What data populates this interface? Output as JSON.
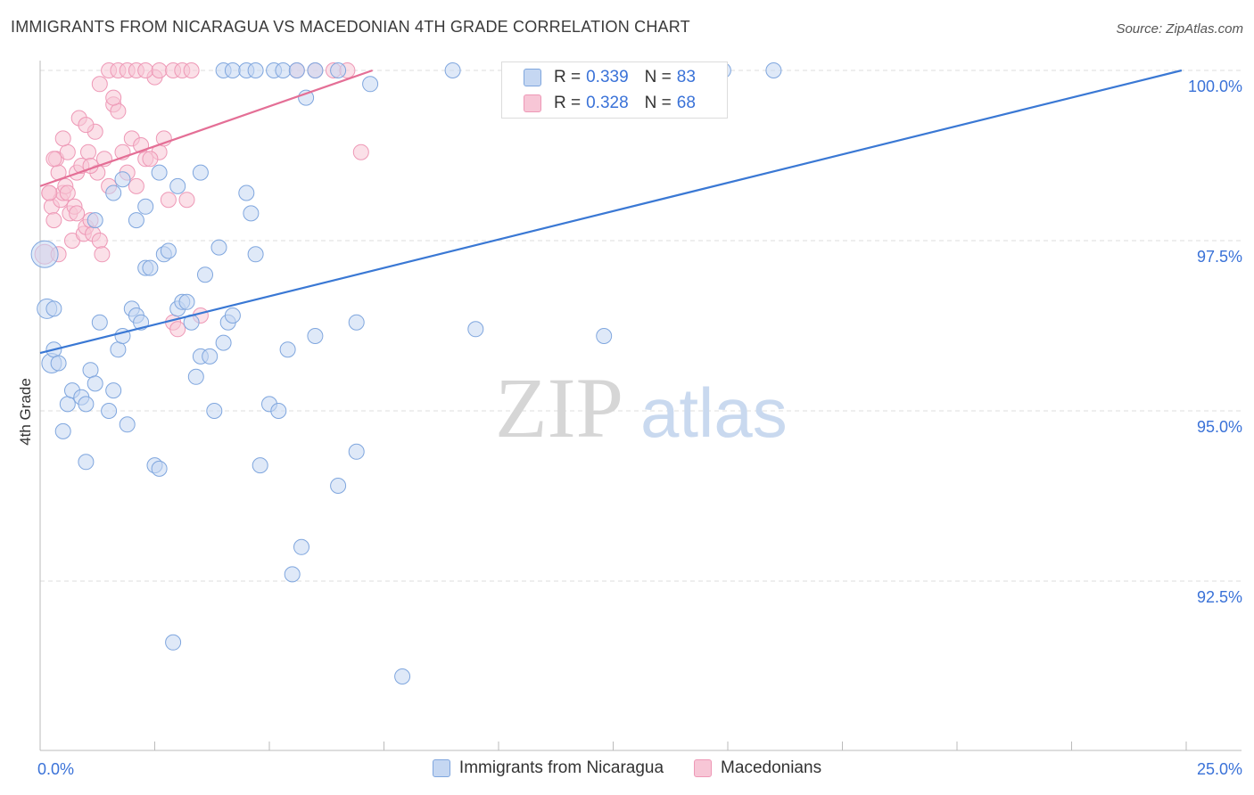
{
  "title": "IMMIGRANTS FROM NICARAGUA VS MACEDONIAN 4TH GRADE CORRELATION CHART",
  "source": "Source: ZipAtlas.com",
  "watermark": {
    "zip": "ZIP",
    "atlas": "atlas"
  },
  "colors": {
    "blue_fill": "#c5d7f2",
    "blue_stroke": "#7fa6de",
    "blue_line": "#3a78d4",
    "pink_fill": "#f7c6d6",
    "pink_stroke": "#ee98b6",
    "pink_line": "#e46f96",
    "grid": "#dedede",
    "tick_label": "#3a72d8"
  },
  "stats": [
    {
      "series": "blue",
      "r_label": "R =",
      "r_value": "0.339",
      "n_label": "N =",
      "n_value": "83"
    },
    {
      "series": "pink",
      "r_label": "R =",
      "r_value": "0.328",
      "n_label": "N =",
      "n_value": "68"
    }
  ],
  "legend": [
    {
      "series": "blue",
      "label": "Immigrants from Nicaragua"
    },
    {
      "series": "pink",
      "label": "Macedonians"
    }
  ],
  "chart_data": {
    "type": "scatter",
    "title": "IMMIGRANTS FROM NICARAGUA VS MACEDONIAN 4TH GRADE CORRELATION CHART",
    "xlabel": "",
    "ylabel": "4th Grade",
    "xlim": [
      0,
      25
    ],
    "ylim": [
      90.5,
      100.4
    ],
    "x_tick_labels": [
      {
        "value": 0,
        "label": "0.0%"
      },
      {
        "value": 25,
        "label": "25.0%"
      }
    ],
    "y_ticks": [
      {
        "value": 100,
        "label": "100.0%"
      },
      {
        "value": 97.5,
        "label": "97.5%"
      },
      {
        "value": 95,
        "label": "95.0%"
      },
      {
        "value": 92.5,
        "label": "92.5%"
      }
    ],
    "series": [
      {
        "name": "Immigrants from Nicaragua",
        "color": "blue",
        "trend": {
          "x0": 0,
          "y0": 95.85,
          "x1": 24.9,
          "y1": 100.0
        },
        "points": [
          [
            0.1,
            97.3,
            3
          ],
          [
            0.15,
            96.5,
            2
          ],
          [
            0.25,
            95.7,
            2
          ],
          [
            0.3,
            96.5,
            1
          ],
          [
            0.3,
            95.9,
            1
          ],
          [
            0.4,
            95.7,
            1
          ],
          [
            0.5,
            94.7,
            1
          ],
          [
            0.6,
            95.1,
            1
          ],
          [
            0.7,
            95.3,
            1
          ],
          [
            0.9,
            95.2,
            1
          ],
          [
            1.0,
            94.25,
            1
          ],
          [
            1.0,
            95.1,
            1
          ],
          [
            1.1,
            95.6,
            1
          ],
          [
            1.2,
            95.4,
            1
          ],
          [
            1.3,
            96.3,
            1
          ],
          [
            1.5,
            95.0,
            1
          ],
          [
            1.6,
            95.3,
            1
          ],
          [
            1.7,
            95.9,
            1
          ],
          [
            1.8,
            96.1,
            1
          ],
          [
            1.9,
            94.8,
            1
          ],
          [
            2.0,
            96.5,
            1
          ],
          [
            2.1,
            96.4,
            1
          ],
          [
            2.2,
            96.3,
            1
          ],
          [
            2.3,
            97.1,
            1
          ],
          [
            2.4,
            97.1,
            1
          ],
          [
            2.5,
            94.2,
            1
          ],
          [
            2.6,
            94.15,
            1
          ],
          [
            2.7,
            97.3,
            1
          ],
          [
            2.8,
            97.35,
            1
          ],
          [
            3.0,
            96.5,
            1
          ],
          [
            3.1,
            96.6,
            1
          ],
          [
            3.2,
            96.6,
            1
          ],
          [
            3.3,
            96.3,
            1
          ],
          [
            3.4,
            95.5,
            1
          ],
          [
            3.5,
            95.8,
            1
          ],
          [
            3.6,
            97.0,
            1
          ],
          [
            3.7,
            95.8,
            1
          ],
          [
            3.8,
            95.0,
            1
          ],
          [
            3.9,
            97.4,
            1
          ],
          [
            4.0,
            96.0,
            1
          ],
          [
            4.1,
            96.3,
            1
          ],
          [
            4.2,
            96.4,
            1
          ],
          [
            4.5,
            98.2,
            1
          ],
          [
            4.6,
            97.9,
            1
          ],
          [
            4.7,
            97.3,
            1
          ],
          [
            4.8,
            94.2,
            1
          ],
          [
            5.0,
            95.1,
            1
          ],
          [
            5.2,
            95.0,
            1
          ],
          [
            5.4,
            95.9,
            1
          ],
          [
            5.7,
            93.0,
            1
          ],
          [
            6.5,
            93.9,
            1
          ],
          [
            6.9,
            94.4,
            1
          ],
          [
            6.0,
            96.1,
            1
          ],
          [
            6.9,
            96.3,
            1
          ],
          [
            9.5,
            96.2,
            1
          ],
          [
            12.3,
            96.1,
            1
          ],
          [
            7.9,
            91.1,
            1
          ],
          [
            5.5,
            92.6,
            1
          ],
          [
            2.9,
            91.6,
            1
          ],
          [
            1.2,
            97.8,
            1
          ],
          [
            1.6,
            98.2,
            1
          ],
          [
            1.8,
            98.4,
            1
          ],
          [
            2.1,
            97.8,
            1
          ],
          [
            2.3,
            98.0,
            1
          ],
          [
            2.6,
            98.5,
            1
          ],
          [
            3.0,
            98.3,
            1
          ],
          [
            3.5,
            98.5,
            1
          ],
          [
            5.8,
            99.6,
            1
          ],
          [
            7.2,
            99.8,
            1
          ],
          [
            12.8,
            99.6,
            1
          ],
          [
            4.0,
            100.0,
            1
          ],
          [
            4.2,
            100.0,
            1
          ],
          [
            4.5,
            100.0,
            1
          ],
          [
            4.7,
            100.0,
            1
          ],
          [
            5.1,
            100.0,
            1
          ],
          [
            5.3,
            100.0,
            1
          ],
          [
            5.6,
            100.0,
            1
          ],
          [
            6.0,
            100.0,
            1
          ],
          [
            6.5,
            100.0,
            1
          ],
          [
            9.0,
            100.0,
            1
          ],
          [
            11.5,
            100.0,
            1
          ],
          [
            14.9,
            100.0,
            1
          ],
          [
            16.0,
            100.0,
            1
          ]
        ]
      },
      {
        "name": "Macedonians",
        "color": "pink",
        "trend": {
          "x0": 0,
          "y0": 98.3,
          "x1": 7.25,
          "y1": 100.0
        },
        "points": [
          [
            0.1,
            97.3,
            2
          ],
          [
            0.2,
            98.2,
            1
          ],
          [
            0.25,
            98.0,
            1
          ],
          [
            0.3,
            97.8,
            1
          ],
          [
            0.35,
            98.7,
            1
          ],
          [
            0.4,
            98.5,
            1
          ],
          [
            0.45,
            98.1,
            1
          ],
          [
            0.5,
            98.2,
            1
          ],
          [
            0.55,
            98.3,
            1
          ],
          [
            0.6,
            98.2,
            1
          ],
          [
            0.65,
            97.9,
            1
          ],
          [
            0.7,
            97.5,
            1
          ],
          [
            0.75,
            98.0,
            1
          ],
          [
            0.8,
            98.5,
            1
          ],
          [
            0.85,
            99.3,
            1
          ],
          [
            0.9,
            98.6,
            1
          ],
          [
            0.95,
            97.6,
            1
          ],
          [
            1.0,
            97.7,
            1
          ],
          [
            1.05,
            98.8,
            1
          ],
          [
            1.1,
            97.8,
            1
          ],
          [
            1.15,
            97.6,
            1
          ],
          [
            1.2,
            99.1,
            1
          ],
          [
            1.25,
            98.5,
            1
          ],
          [
            1.3,
            97.5,
            1
          ],
          [
            1.35,
            97.3,
            1
          ],
          [
            1.4,
            98.7,
            1
          ],
          [
            1.5,
            98.3,
            1
          ],
          [
            1.6,
            99.5,
            1
          ],
          [
            1.7,
            99.4,
            1
          ],
          [
            1.8,
            98.8,
            1
          ],
          [
            1.9,
            98.5,
            1
          ],
          [
            2.0,
            99.0,
            1
          ],
          [
            2.1,
            98.3,
            1
          ],
          [
            2.2,
            98.9,
            1
          ],
          [
            2.3,
            98.7,
            1
          ],
          [
            2.5,
            99.9,
            1
          ],
          [
            2.6,
            98.8,
            1
          ],
          [
            2.7,
            99.0,
            1
          ],
          [
            2.8,
            98.1,
            1
          ],
          [
            2.9,
            96.3,
            1
          ],
          [
            3.0,
            96.2,
            1
          ],
          [
            3.2,
            98.1,
            1
          ],
          [
            1.5,
            100.0,
            1
          ],
          [
            1.7,
            100.0,
            1
          ],
          [
            1.9,
            100.0,
            1
          ],
          [
            2.1,
            100.0,
            1
          ],
          [
            2.3,
            100.0,
            1
          ],
          [
            2.6,
            100.0,
            1
          ],
          [
            2.9,
            100.0,
            1
          ],
          [
            3.1,
            100.0,
            1
          ],
          [
            3.3,
            100.0,
            1
          ],
          [
            5.6,
            100.0,
            1
          ],
          [
            6.0,
            100.0,
            1
          ],
          [
            6.4,
            100.0,
            1
          ],
          [
            6.7,
            100.0,
            1
          ],
          [
            1.3,
            99.8,
            1
          ],
          [
            1.6,
            99.6,
            1
          ],
          [
            1.0,
            99.2,
            1
          ],
          [
            0.6,
            98.8,
            1
          ],
          [
            0.4,
            97.3,
            1
          ],
          [
            0.3,
            98.7,
            1
          ],
          [
            0.5,
            99.0,
            1
          ],
          [
            7.0,
            98.8,
            1
          ],
          [
            3.5,
            96.4,
            1
          ],
          [
            0.2,
            98.2,
            1
          ],
          [
            0.8,
            97.9,
            1
          ],
          [
            1.1,
            98.6,
            1
          ],
          [
            2.4,
            98.7,
            1
          ]
        ]
      }
    ]
  }
}
